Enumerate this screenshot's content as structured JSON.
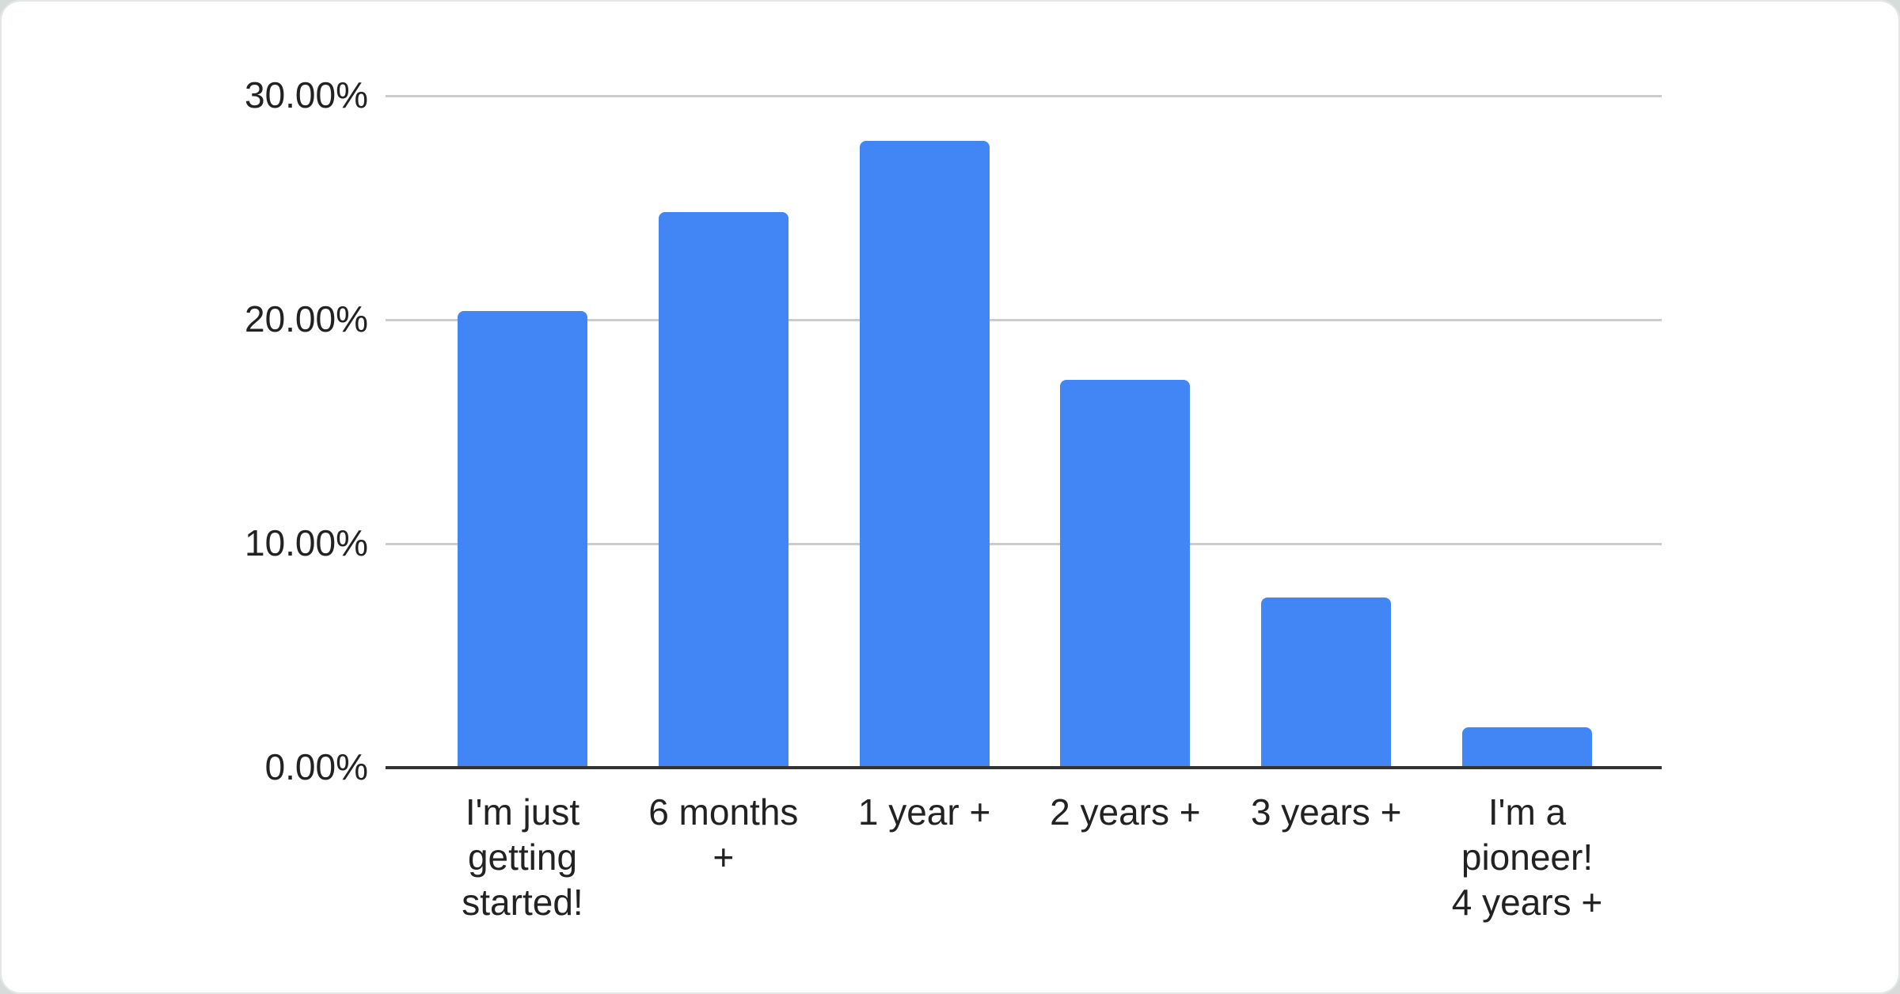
{
  "chart_data": {
    "type": "bar",
    "title": "",
    "xlabel": "",
    "ylabel": "",
    "categories": [
      "I'm just\ngetting\nstarted!",
      "6 months\n+",
      "1 year +",
      "2 years +",
      "3 years +",
      "I'm a\npioneer!\n4 years +"
    ],
    "values": [
      20.4,
      24.8,
      28.0,
      17.3,
      7.6,
      1.8
    ],
    "value_format": "percent",
    "ylim": [
      0,
      30
    ],
    "y_ticks": [
      {
        "value": 0,
        "label": "0.00%"
      },
      {
        "value": 10,
        "label": "10.00%"
      },
      {
        "value": 20,
        "label": "20.00%"
      },
      {
        "value": 30,
        "label": "30.00%"
      }
    ],
    "grid": true,
    "legend": "none",
    "colors": {
      "bar": "#4285f4",
      "gridline": "#cccccc",
      "baseline": "#333333",
      "axis_text": "#222222",
      "card_background": "#ffffff",
      "page_background": "#d7dcdb"
    }
  }
}
